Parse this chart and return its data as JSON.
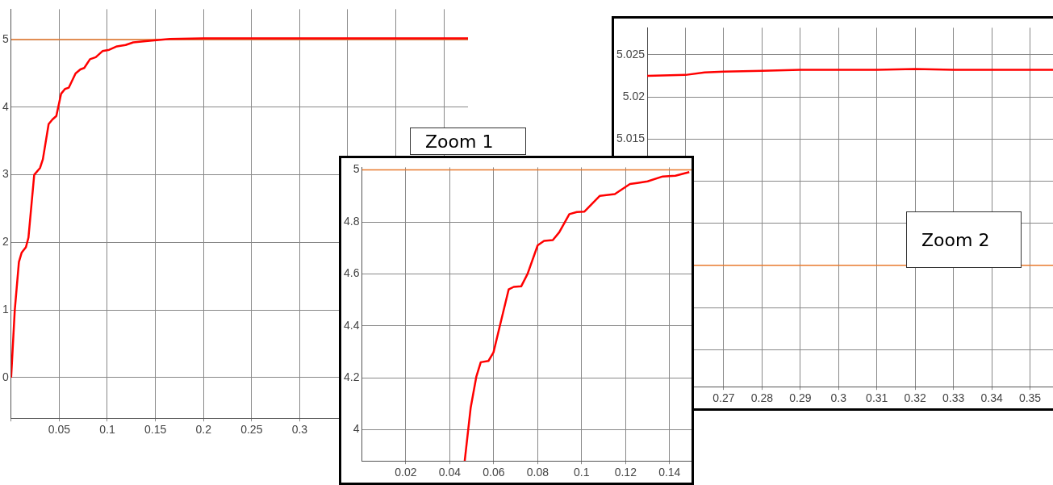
{
  "chart_data": [
    {
      "type": "line",
      "xlim": [
        0,
        0.475
      ],
      "ylim": [
        -0.6,
        5.45
      ],
      "xticks": [
        {
          "value": 0,
          "label": null
        },
        0.05,
        0.1,
        0.15,
        0.2,
        0.25,
        0.3,
        {
          "value": 0.35,
          "label": null
        },
        {
          "value": 0.4,
          "label": null
        },
        {
          "value": 0.45,
          "label": null
        }
      ],
      "yticks": [
        0,
        1,
        2,
        3,
        4,
        5
      ],
      "grid": true,
      "marker": "none",
      "ref_lines": [
        {
          "axis": "y",
          "value": 5,
          "color": "#e87a2e"
        }
      ],
      "series": [
        {
          "color": "#ff0000",
          "x": [
            0,
            0.0038,
            0.0081,
            0.011,
            0.0154,
            0.018,
            0.024,
            0.03,
            0.033,
            0.039,
            0.043,
            0.047,
            0.052,
            0.056,
            0.06,
            0.067,
            0.072,
            0.076,
            0.082,
            0.088,
            0.095,
            0.102,
            0.11,
            0.119,
            0.127,
            0.142,
            0.165,
            0.2,
            0.252,
            0.3,
            0.35,
            0.4,
            0.475
          ],
          "values": [
            0,
            1.0,
            1.71,
            1.85,
            1.93,
            2.07,
            3.0,
            3.1,
            3.23,
            3.75,
            3.82,
            3.87,
            4.2,
            4.27,
            4.29,
            4.5,
            4.56,
            4.58,
            4.71,
            4.74,
            4.83,
            4.85,
            4.9,
            4.92,
            4.96,
            4.98,
            5.01,
            5.02,
            5.02,
            5.02,
            5.02,
            5.02,
            5.02
          ]
        }
      ]
    },
    {
      "type": "line",
      "title": "Zoom 1",
      "xlim": [
        0,
        0.15
      ],
      "ylim": [
        3.88,
        5.01
      ],
      "xticks": [
        0.02,
        0.04,
        0.06,
        0.08,
        0.1,
        0.12,
        0.14
      ],
      "yticks": [
        4,
        4.2,
        4.4,
        4.6,
        4.8,
        5
      ],
      "grid": true,
      "marker": "none",
      "ref_lines": [
        {
          "axis": "y",
          "value": 5,
          "color": "#e87a2e"
        }
      ],
      "series": [
        {
          "color": "#ff0000",
          "x": [
            0.0468,
            0.0495,
            0.0521,
            0.0541,
            0.0576,
            0.0599,
            0.0628,
            0.0668,
            0.0691,
            0.0725,
            0.0754,
            0.08,
            0.0829,
            0.0869,
            0.0898,
            0.0944,
            0.0978,
            0.1013,
            0.1082,
            0.1151,
            0.122,
            0.1254,
            0.13,
            0.1369,
            0.1427,
            0.149
          ],
          "values": [
            3.88,
            4.084,
            4.205,
            4.26,
            4.265,
            4.298,
            4.4,
            4.54,
            4.55,
            4.552,
            4.6,
            4.71,
            4.727,
            4.73,
            4.76,
            4.83,
            4.838,
            4.84,
            4.9,
            4.907,
            4.946,
            4.95,
            4.956,
            4.975,
            4.978,
            4.992
          ]
        }
      ]
    },
    {
      "type": "line",
      "title": "Zoom 2",
      "xlim": [
        0.25,
        0.356
      ],
      "ylim": [
        4.9856,
        5.0282
      ],
      "xticks": [
        {
          "value": 0.26,
          "label": null
        },
        0.27,
        0.28,
        0.29,
        0.3,
        0.31,
        0.32,
        0.33,
        0.34,
        0.35
      ],
      "yticks": [
        {
          "value": 4.99,
          "label": null
        },
        {
          "value": 4.995,
          "label": null
        },
        {
          "value": 5,
          "label": null
        },
        {
          "value": 5.005,
          "label": null
        },
        {
          "value": 5.01,
          "label": null
        },
        5.015,
        5.02,
        5.025
      ],
      "grid": true,
      "marker": "none",
      "ref_lines": [
        {
          "axis": "y",
          "value": 5,
          "color": "#e87a2e"
        }
      ],
      "series": [
        {
          "color": "#ff0000",
          "x": [
            0.25,
            0.26,
            0.265,
            0.27,
            0.28,
            0.29,
            0.3,
            0.31,
            0.32,
            0.33,
            0.34,
            0.356
          ],
          "values": [
            5.0225,
            5.0226,
            5.0229,
            5.023,
            5.0231,
            5.0232,
            5.0232,
            5.0232,
            5.0233,
            5.0232,
            5.0232,
            5.0232
          ]
        }
      ]
    }
  ]
}
